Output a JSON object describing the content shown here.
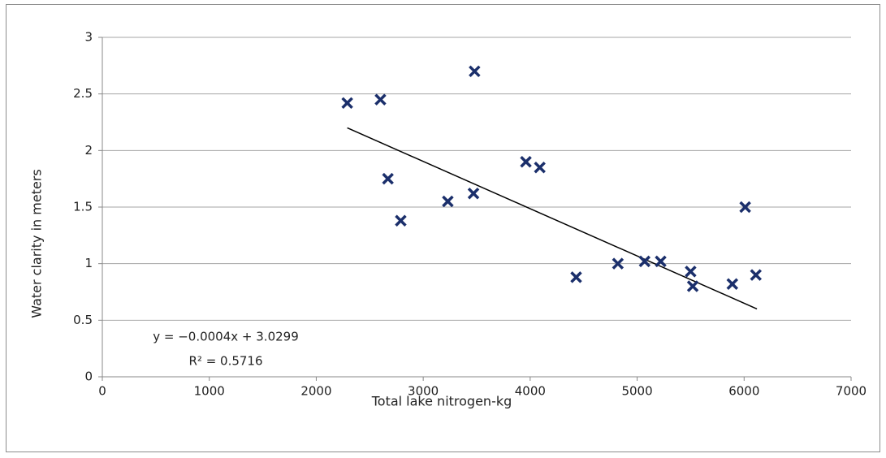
{
  "chart_data": {
    "type": "scatter",
    "x_label": "Total lake nitrogen-kg",
    "y_label": "Water clarity in meters",
    "series": [
      {
        "color": "#1b2f6b",
        "x": [
          2290,
          2600,
          3480,
          2670,
          2790,
          3230,
          3470,
          3960,
          4090,
          4430,
          4820,
          5070,
          5220,
          5500,
          5520,
          5890,
          6010,
          6110
        ],
        "values": [
          2.42,
          2.45,
          2.7,
          1.75,
          1.38,
          1.55,
          1.62,
          1.9,
          1.85,
          0.88,
          1.0,
          1.02,
          1.02,
          0.93,
          0.8,
          0.82,
          1.5,
          0.9
        ]
      }
    ],
    "trendline": {
      "color": "#000000",
      "x": [
        2290,
        6120
      ],
      "values": [
        2.2,
        0.6
      ]
    },
    "annotations": [
      "y = −0.0004x + 3.0299",
      "R² = 0.5716"
    ],
    "xlim": [
      0,
      7000
    ],
    "xticks": [
      0,
      1000,
      2000,
      3000,
      4000,
      5000,
      6000,
      7000
    ],
    "ylim": [
      0,
      3
    ],
    "yticks": [
      0,
      0.5,
      1,
      1.5,
      2,
      2.5,
      3
    ],
    "grid": true
  }
}
